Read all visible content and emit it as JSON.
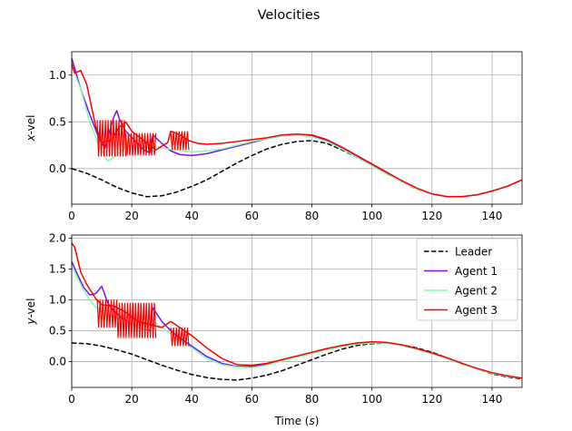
{
  "figure": {
    "title": "Velocities"
  },
  "chart_data": [
    {
      "type": "line",
      "title": "",
      "xlabel": "",
      "ylabel_var": "x",
      "ylabel_suffix": "-vel",
      "xlim": [
        0,
        150
      ],
      "ylim": [
        -0.38,
        1.25
      ],
      "xticks": [
        0,
        20,
        40,
        60,
        80,
        100,
        120,
        140
      ],
      "yticks": [
        0.0,
        0.5,
        1.0
      ],
      "ytick_labels": [
        "0.0",
        "0.5",
        "1.0"
      ],
      "grid": true,
      "series": [
        {
          "name": "Leader",
          "color": "#000000",
          "dash": "dashed",
          "x": [
            0,
            5,
            10,
            15,
            20,
            25,
            30,
            35,
            40,
            45,
            50,
            55,
            60,
            65,
            70,
            75,
            80,
            85,
            90,
            95,
            100,
            105,
            110,
            115,
            120,
            125,
            130,
            135,
            140,
            145,
            150
          ],
          "y": [
            0.0,
            -0.05,
            -0.12,
            -0.2,
            -0.26,
            -0.3,
            -0.29,
            -0.25,
            -0.19,
            -0.12,
            -0.03,
            0.06,
            0.14,
            0.21,
            0.26,
            0.29,
            0.3,
            0.27,
            0.2,
            0.12,
            0.04,
            -0.05,
            -0.14,
            -0.22,
            -0.27,
            -0.3,
            -0.3,
            -0.28,
            -0.24,
            -0.19,
            -0.12
          ]
        },
        {
          "name": "Agent 1",
          "color": "#7b0fff",
          "dash": "solid",
          "x": [
            0,
            3,
            6,
            9,
            11,
            14,
            15,
            16,
            18,
            21,
            24,
            26,
            27,
            30,
            33,
            36,
            40,
            45,
            50,
            55,
            60,
            65,
            70,
            75,
            80,
            85,
            90,
            95,
            100,
            105,
            110,
            115,
            120,
            125,
            130,
            135,
            140,
            145,
            150
          ],
          "y": [
            1.18,
            0.85,
            0.58,
            0.33,
            0.22,
            0.55,
            0.62,
            0.52,
            0.4,
            0.3,
            0.2,
            0.17,
            0.36,
            0.27,
            0.19,
            0.15,
            0.14,
            0.16,
            0.2,
            0.24,
            0.28,
            0.32,
            0.35,
            0.36,
            0.35,
            0.3,
            0.22,
            0.13,
            0.04,
            -0.05,
            -0.14,
            -0.22,
            -0.27,
            -0.3,
            -0.3,
            -0.28,
            -0.24,
            -0.19,
            -0.12
          ]
        },
        {
          "name": "Agent 2",
          "color": "#7fffaa",
          "dash": "solid",
          "x": [
            0,
            3,
            6,
            9,
            12,
            14,
            17,
            20,
            25,
            30,
            35,
            40,
            45,
            50,
            55,
            60,
            65,
            70,
            75,
            80,
            85,
            90,
            95,
            100,
            105,
            110,
            115,
            120,
            125,
            130,
            135,
            140,
            145,
            150
          ],
          "y": [
            1.1,
            0.85,
            0.5,
            0.25,
            0.08,
            0.12,
            0.2,
            0.35,
            0.26,
            0.22,
            0.2,
            0.18,
            0.19,
            0.21,
            0.25,
            0.29,
            0.32,
            0.35,
            0.36,
            0.34,
            0.29,
            0.21,
            0.12,
            0.03,
            -0.06,
            -0.14,
            -0.22,
            -0.27,
            -0.3,
            -0.3,
            -0.28,
            -0.24,
            -0.19,
            -0.12
          ]
        },
        {
          "name": "Agent 3",
          "color": "#ff0000",
          "dash": "solid",
          "oscillation_bands": [
            {
              "x_start": 8.5,
              "x_end": 18,
              "y_low": 0.13,
              "y_high": 0.52
            },
            {
              "x_start": 18,
              "x_end": 28,
              "y_low": 0.14,
              "y_high": 0.38
            },
            {
              "x_start": 33,
              "x_end": 39,
              "y_low": 0.2,
              "y_high": 0.4
            }
          ],
          "x": [
            0,
            1,
            3,
            5,
            8,
            10,
            13,
            16,
            18,
            20,
            24,
            28,
            32,
            33,
            36,
            39,
            42,
            45,
            50,
            55,
            60,
            65,
            70,
            75,
            80,
            85,
            90,
            95,
            100,
            105,
            110,
            115,
            120,
            125,
            130,
            135,
            140,
            145,
            150
          ],
          "y": [
            1.12,
            1.02,
            1.05,
            0.9,
            0.45,
            0.28,
            0.3,
            0.45,
            0.5,
            0.4,
            0.3,
            0.2,
            0.28,
            0.4,
            0.36,
            0.3,
            0.27,
            0.26,
            0.27,
            0.29,
            0.31,
            0.33,
            0.36,
            0.37,
            0.36,
            0.31,
            0.23,
            0.14,
            0.05,
            -0.04,
            -0.13,
            -0.21,
            -0.27,
            -0.3,
            -0.3,
            -0.28,
            -0.24,
            -0.19,
            -0.12
          ]
        }
      ]
    },
    {
      "type": "line",
      "title": "",
      "xlabel": "Time (s)",
      "xlabel_prefix": "Time (",
      "xlabel_var": "s",
      "xlabel_suffix": ")",
      "ylabel_var": "y",
      "ylabel_suffix": "-vel",
      "xlim": [
        0,
        150
      ],
      "ylim": [
        -0.42,
        2.05
      ],
      "xticks": [
        0,
        20,
        40,
        60,
        80,
        100,
        120,
        140
      ],
      "yticks": [
        0.0,
        0.5,
        1.0,
        1.5,
        2.0
      ],
      "ytick_labels": [
        "0.0",
        "0.5",
        "1.0",
        "1.5",
        "2.0"
      ],
      "grid": true,
      "legend": {
        "placement": "top-right",
        "entries": [
          "Leader",
          "Agent 1",
          "Agent 2",
          "Agent 3"
        ]
      },
      "series": [
        {
          "name": "Leader",
          "color": "#000000",
          "dash": "dashed",
          "x": [
            0,
            5,
            10,
            15,
            20,
            25,
            30,
            35,
            40,
            45,
            50,
            55,
            60,
            65,
            70,
            75,
            80,
            85,
            90,
            95,
            100,
            105,
            110,
            115,
            120,
            125,
            130,
            135,
            140,
            145,
            150
          ],
          "y": [
            0.3,
            0.29,
            0.25,
            0.19,
            0.12,
            0.03,
            -0.06,
            -0.14,
            -0.21,
            -0.26,
            -0.29,
            -0.3,
            -0.27,
            -0.22,
            -0.15,
            -0.06,
            0.03,
            0.12,
            0.2,
            0.26,
            0.29,
            0.3,
            0.27,
            0.22,
            0.15,
            0.06,
            -0.03,
            -0.12,
            -0.2,
            -0.25,
            -0.28
          ]
        },
        {
          "name": "Agent 1",
          "color": "#7b0fff",
          "dash": "solid",
          "x": [
            0,
            2,
            4,
            6,
            8,
            10,
            12,
            14,
            17,
            20,
            24,
            26,
            27,
            30,
            33,
            36,
            40,
            45,
            50,
            55,
            60,
            65,
            70,
            75,
            80,
            85,
            90,
            95,
            100,
            105,
            110,
            115,
            120,
            125,
            130,
            135,
            140,
            145,
            150
          ],
          "y": [
            1.62,
            1.4,
            1.2,
            1.08,
            1.1,
            1.22,
            0.95,
            0.82,
            0.7,
            0.6,
            0.52,
            0.5,
            0.87,
            0.65,
            0.5,
            0.38,
            0.25,
            0.08,
            -0.03,
            -0.08,
            -0.08,
            -0.05,
            0.02,
            0.08,
            0.14,
            0.2,
            0.25,
            0.29,
            0.31,
            0.3,
            0.26,
            0.2,
            0.13,
            0.05,
            -0.04,
            -0.12,
            -0.19,
            -0.24,
            -0.27
          ]
        },
        {
          "name": "Agent 2",
          "color": "#7fffaa",
          "dash": "solid",
          "x": [
            0,
            2,
            4,
            6,
            8,
            10,
            12,
            14,
            17,
            20,
            25,
            28,
            30,
            33,
            36,
            40,
            45,
            50,
            55,
            60,
            65,
            70,
            75,
            80,
            85,
            90,
            95,
            100,
            105,
            110,
            115,
            120,
            125,
            130,
            135,
            140,
            145,
            150
          ],
          "y": [
            1.55,
            1.35,
            1.15,
            1.0,
            0.88,
            0.8,
            0.75,
            0.72,
            0.68,
            0.6,
            0.5,
            0.62,
            0.55,
            0.45,
            0.35,
            0.22,
            0.05,
            -0.05,
            -0.09,
            -0.1,
            -0.06,
            0.01,
            0.07,
            0.13,
            0.19,
            0.24,
            0.28,
            0.3,
            0.3,
            0.26,
            0.2,
            0.13,
            0.05,
            -0.04,
            -0.12,
            -0.19,
            -0.24,
            -0.27
          ]
        },
        {
          "name": "Agent 3",
          "color": "#ff0000",
          "dash": "solid",
          "oscillation_bands": [
            {
              "x_start": 8.5,
              "x_end": 15,
              "y_low": 0.55,
              "y_high": 1.0
            },
            {
              "x_start": 15,
              "x_end": 28,
              "y_low": 0.38,
              "y_high": 0.95
            },
            {
              "x_start": 33,
              "x_end": 39,
              "y_low": 0.25,
              "y_high": 0.55
            }
          ],
          "x": [
            0,
            1,
            3,
            5,
            8,
            10,
            14,
            18,
            22,
            26,
            30,
            33,
            36,
            40,
            45,
            50,
            55,
            60,
            65,
            70,
            75,
            80,
            85,
            90,
            95,
            100,
            105,
            110,
            115,
            120,
            125,
            130,
            135,
            140,
            145,
            150
          ],
          "y": [
            1.92,
            1.85,
            1.45,
            1.25,
            1.02,
            0.92,
            0.9,
            0.8,
            0.65,
            0.6,
            0.55,
            0.65,
            0.55,
            0.42,
            0.22,
            0.05,
            -0.05,
            -0.06,
            -0.03,
            0.03,
            0.09,
            0.15,
            0.21,
            0.26,
            0.3,
            0.32,
            0.31,
            0.27,
            0.21,
            0.14,
            0.06,
            -0.03,
            -0.11,
            -0.18,
            -0.23,
            -0.27
          ]
        }
      ]
    }
  ]
}
